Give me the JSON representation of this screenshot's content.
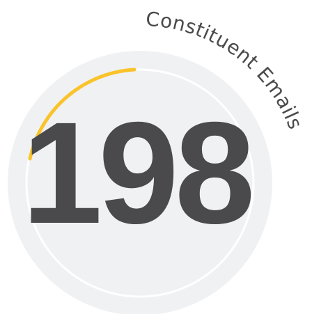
{
  "value": "198",
  "label": "Constituent Emails"
}
